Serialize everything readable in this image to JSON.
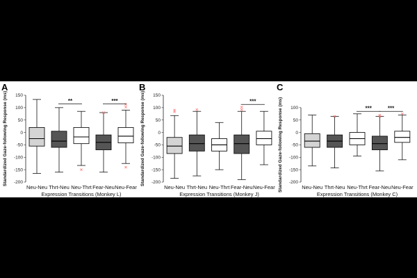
{
  "figure": {
    "background": "#000000",
    "panel_background": "#ffffff"
  },
  "colors": {
    "light": "#d4d4d4",
    "dark": "#555555",
    "white": "#ffffff",
    "outlier": "#ff7a7a"
  },
  "chart_data": [
    {
      "panel": "A",
      "type": "boxplot",
      "ylabel": "Standardized Gaze-following Response (ms)",
      "xlabel": "Expression Transitions (Monkey L)",
      "ylim": [
        -200,
        150
      ],
      "yticks": [
        -200,
        -150,
        -100,
        -50,
        0,
        50,
        100,
        150
      ],
      "categories": [
        "Neu-Neu",
        "Thrt-Neu",
        "Neu-Thrt",
        "Fear-Neu",
        "Neu-Fear"
      ],
      "fills": [
        "light",
        "dark",
        "white",
        "dark",
        "white"
      ],
      "boxes": [
        {
          "whisker_low": -165,
          "q1": -55,
          "median": -25,
          "q3": 20,
          "whisker_high": 133,
          "outliers": []
        },
        {
          "whisker_low": -160,
          "q1": -60,
          "median": -35,
          "q3": 5,
          "whisker_high": 100,
          "outliers": []
        },
        {
          "whisker_low": -133,
          "q1": -45,
          "median": -18,
          "q3": 20,
          "whisker_high": 85,
          "outliers": [
            -150
          ]
        },
        {
          "whisker_low": -160,
          "q1": -70,
          "median": -40,
          "q3": -10,
          "whisker_high": 80,
          "outliers": [
            80
          ]
        },
        {
          "whisker_low": -125,
          "q1": -42,
          "median": -15,
          "q3": 20,
          "whisker_high": 90,
          "outliers": [
            113,
            102,
            -140
          ]
        }
      ],
      "significance": [
        {
          "from": 1,
          "to": 2,
          "label": "**",
          "y": 115
        },
        {
          "from": 3,
          "to": 4,
          "label": "***",
          "y": 115
        }
      ]
    },
    {
      "panel": "B",
      "type": "boxplot",
      "ylabel": "Standardized Gaze-following Response (ms)",
      "xlabel": "Expression Transitions (Monkey J)",
      "ylim": [
        -200,
        150
      ],
      "yticks": [
        -200,
        -150,
        -100,
        -50,
        0,
        50,
        100,
        150
      ],
      "categories": [
        "Neu-Neu",
        "Thrt-Neu",
        "Neu-Thrt",
        "Fear-Neu",
        "Neu-Fear"
      ],
      "fills": [
        "light",
        "dark",
        "white",
        "dark",
        "white"
      ],
      "boxes": [
        {
          "whisker_low": -185,
          "q1": -85,
          "median": -55,
          "q3": -20,
          "whisker_high": 68,
          "outliers": [
            90,
            83
          ]
        },
        {
          "whisker_low": -175,
          "q1": -75,
          "median": -45,
          "q3": -10,
          "whisker_high": 85,
          "outliers": [
            92
          ]
        },
        {
          "whisker_low": -150,
          "q1": -75,
          "median": -50,
          "q3": -25,
          "whisker_high": 40,
          "outliers": []
        },
        {
          "whisker_low": -190,
          "q1": -85,
          "median": -45,
          "q3": -10,
          "whisker_high": 85,
          "outliers": [
            102,
            92
          ]
        },
        {
          "whisker_low": -130,
          "q1": -50,
          "median": -25,
          "q3": 5,
          "whisker_high": 85,
          "outliers": []
        }
      ],
      "significance": [
        {
          "from": 3,
          "to": 4,
          "label": "***",
          "y": 113
        }
      ]
    },
    {
      "panel": "C",
      "type": "boxplot",
      "ylabel": "Standardized Gaze-following Response (ms)",
      "xlabel": "Expression Transitions (Monkey C)",
      "ylim": [
        -200,
        100
      ],
      "yticks": [
        -200,
        -150,
        -100,
        -50,
        0,
        50,
        100
      ],
      "categories": [
        "Neu-Neu",
        "Thrt-Neu",
        "Neu-Thrt",
        "Fear-Neu",
        "Neu-Fear"
      ],
      "fills": [
        "light",
        "dark",
        "white",
        "dark",
        "white"
      ],
      "boxes": [
        {
          "whisker_low": -135,
          "q1": -60,
          "median": -35,
          "q3": -5,
          "whisker_high": 70,
          "outliers": []
        },
        {
          "whisker_low": -143,
          "q1": -60,
          "median": -35,
          "q3": -10,
          "whisker_high": 65,
          "outliers": [
            65
          ]
        },
        {
          "whisker_low": -95,
          "q1": -50,
          "median": -25,
          "q3": 0,
          "whisker_high": 75,
          "outliers": []
        },
        {
          "whisker_low": -155,
          "q1": -70,
          "median": -45,
          "q3": -15,
          "whisker_high": 65,
          "outliers": [
            70,
            65
          ]
        },
        {
          "whisker_low": -110,
          "q1": -40,
          "median": -20,
          "q3": 5,
          "whisker_high": 70,
          "outliers": [
            75
          ]
        }
      ],
      "significance": [
        {
          "from": 2,
          "to": 3,
          "label": "***",
          "y": 85
        },
        {
          "from": 3,
          "to": 4,
          "label": "***",
          "y": 85
        }
      ]
    }
  ]
}
